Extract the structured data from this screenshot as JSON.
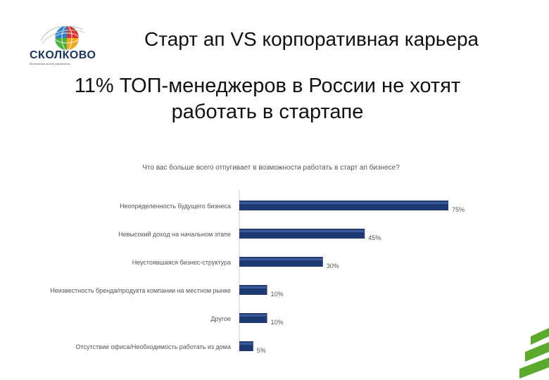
{
  "logo": {
    "name": "СКОЛКОВО",
    "tagline": "Московская школа управления"
  },
  "slide": {
    "title": "Старт ап VS корпоративная карьера",
    "heading": "11% ТОП-менеджеров в России не хотят работать в стартапе"
  },
  "colors": {
    "bar": "#1d3a73",
    "bar_highlight": "#3b5a9a",
    "accent_green": "#5aab2d",
    "text_grey": "#555555"
  },
  "chart_data": {
    "type": "bar",
    "orientation": "horizontal",
    "title": "Что вас больше всего отпугивает в возможности работать в старт ап бизнесе?",
    "categories": [
      "Неопределенность будущего бизнеса",
      "Невысокий доход на начальном этапе",
      "Неустоявшаяся бизнес-структура",
      "Неизвестность бренда/продукта компании на местном рынке",
      "Другое",
      "Отсутствие офиса/Необходимость работать из дома"
    ],
    "values": [
      75,
      45,
      30,
      10,
      10,
      5
    ],
    "value_labels": [
      "75%",
      "45%",
      "30%",
      "10%",
      "10%",
      "5%"
    ],
    "xlim": [
      0,
      100
    ],
    "grid": false,
    "legend": false
  }
}
